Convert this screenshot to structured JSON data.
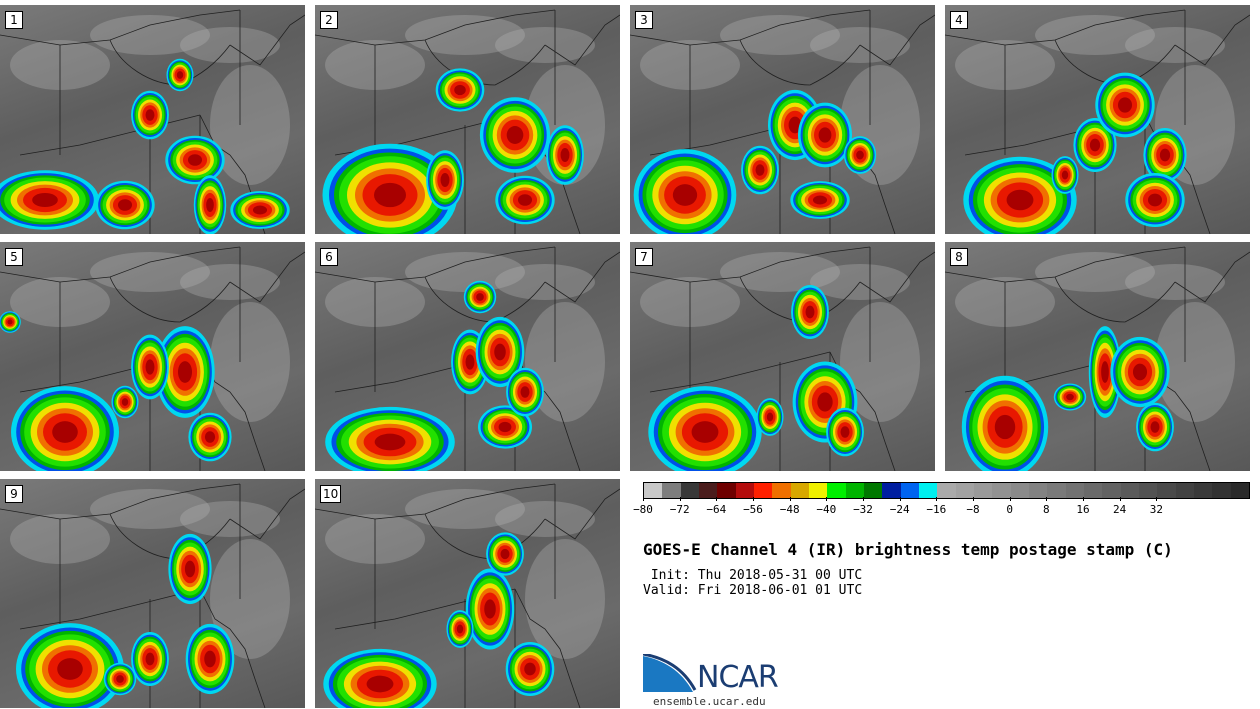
{
  "panels": [
    {
      "label": "1"
    },
    {
      "label": "2"
    },
    {
      "label": "3"
    },
    {
      "label": "4"
    },
    {
      "label": "5"
    },
    {
      "label": "6"
    },
    {
      "label": "7"
    },
    {
      "label": "8"
    },
    {
      "label": "9"
    },
    {
      "label": "10"
    }
  ],
  "colorbar": {
    "colors": [
      "#c8c8c8",
      "#7d7d7d",
      "#383838",
      "#4a1c1c",
      "#6e0000",
      "#b40c0c",
      "#ff2000",
      "#f07000",
      "#d8a800",
      "#f0f000",
      "#00f000",
      "#00b400",
      "#007800",
      "#001ea0",
      "#0064f0",
      "#00f0f0",
      "#aaaaaa",
      "#a2a2a2",
      "#9a9a9a",
      "#929292",
      "#8a8a8a",
      "#828282",
      "#7a7a7a",
      "#727272",
      "#6a6a6a",
      "#626262",
      "#5a5a5a",
      "#525252",
      "#4a4a4a",
      "#424242",
      "#3a3a3a",
      "#323232",
      "#2a2a2a"
    ],
    "min": -80,
    "step": 4,
    "ticks": [
      {
        "value": -80,
        "label": "−80"
      },
      {
        "value": -72,
        "label": "−72"
      },
      {
        "value": -64,
        "label": "−64"
      },
      {
        "value": -56,
        "label": "−56"
      },
      {
        "value": -48,
        "label": "−48"
      },
      {
        "value": -40,
        "label": "−40"
      },
      {
        "value": -32,
        "label": "−32"
      },
      {
        "value": -24,
        "label": "−24"
      },
      {
        "value": -16,
        "label": "−16"
      },
      {
        "value": -8,
        "label": "−8"
      },
      {
        "value": 0,
        "label": "0"
      },
      {
        "value": 8,
        "label": "8"
      },
      {
        "value": 16,
        "label": "16"
      },
      {
        "value": 24,
        "label": "24"
      },
      {
        "value": 32,
        "label": "32"
      }
    ]
  },
  "title": "GOES-E Channel 4 (IR) brightness temp postage stamp (C)",
  "init": " Init: Thu 2018-05-31 00 UTC",
  "valid": "Valid: Fri 2018-06-01 01 UTC",
  "logo_text": "NCAR",
  "website": "ensemble.ucar.edu"
}
